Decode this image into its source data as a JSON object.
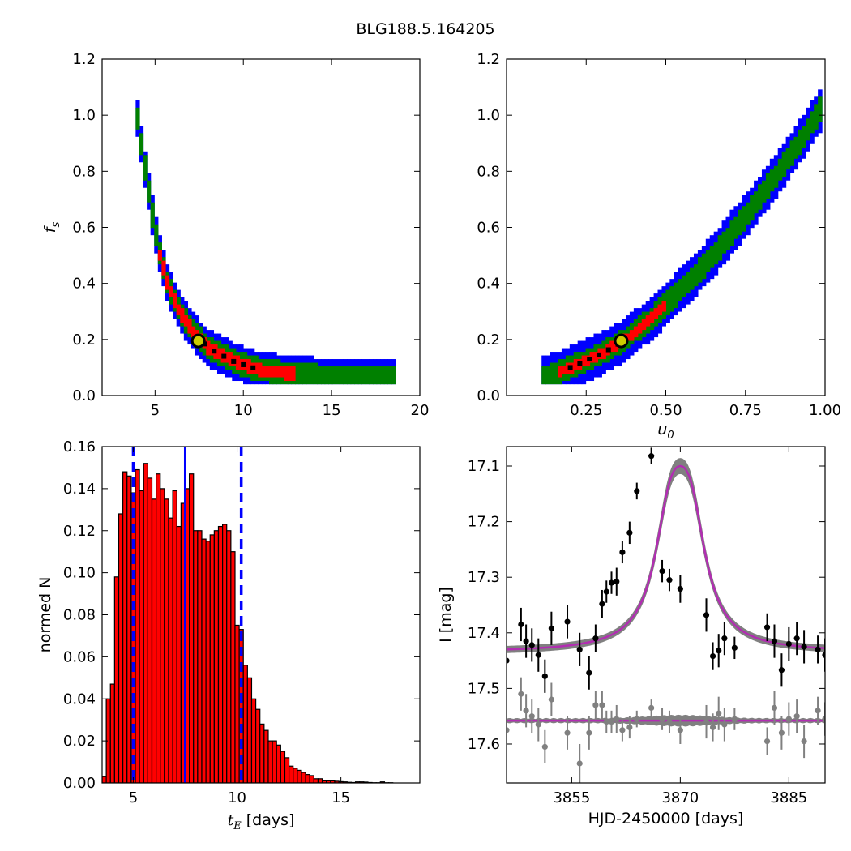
{
  "figure": {
    "title": "BLG188.5.164205"
  },
  "colors": {
    "outer": "#0000ff",
    "mid": "#008000",
    "inner": "#ff0000",
    "core": "#000000",
    "marker_ring": "#000000",
    "marker_fill": "#cccc00",
    "hist_fill": "#ff0000",
    "hist_edge": "#000000",
    "median_line": "#0000ff",
    "model_curve": "#b22db2",
    "data_points": "#000000",
    "residuals": "#808080",
    "model_band": "#808080"
  },
  "chart_data": [
    {
      "id": "fs_vs_tE",
      "type": "heatmap",
      "title": "",
      "xlabel": "",
      "ylabel": "f_s",
      "ylabel_main": "f",
      "ylabel_sub": "s",
      "xlim": [
        2,
        20
      ],
      "ylim": [
        0,
        1.2
      ],
      "xticks": [
        5,
        10,
        15,
        20
      ],
      "xtick_labels": [
        "5",
        "10",
        "15",
        "20"
      ],
      "yticks": [
        0.0,
        0.2,
        0.4,
        0.6,
        0.8,
        1.0,
        1.2
      ],
      "ytick_labels": [
        "0.0",
        "0.2",
        "0.4",
        "0.6",
        "0.8",
        "1.0",
        "1.2"
      ],
      "ridge_x": [
        3.9,
        4.1,
        4.4,
        4.8,
        5.2,
        5.7,
        6.3,
        7.0,
        8.0,
        9.5,
        11.0,
        13.0,
        15.0,
        17.5,
        18.6
      ],
      "ridge_y": [
        1.03,
        0.95,
        0.82,
        0.66,
        0.52,
        0.4,
        0.31,
        0.24,
        0.17,
        0.12,
        0.09,
        0.075,
        0.065,
        0.06,
        0.06
      ],
      "contour_half_width": {
        "outer": 0.06,
        "mid": 0.035,
        "inner": 0.015
      },
      "inner_range_x": [
        5.1,
        13.0
      ],
      "best_fit": {
        "x": 7.45,
        "y": 0.195
      }
    },
    {
      "id": "fs_vs_u0",
      "type": "heatmap",
      "title": "",
      "xlabel": "u_0",
      "xlabel_main": "u",
      "xlabel_sub": "0",
      "ylabel": "",
      "xlim": [
        0.0,
        1.0
      ],
      "ylim": [
        0,
        1.2
      ],
      "xticks": [
        0.25,
        0.5,
        0.75,
        1.0
      ],
      "xtick_labels": [
        "0.25",
        "0.50",
        "0.75",
        "1.00"
      ],
      "yticks": [
        0.0,
        0.2,
        0.4,
        0.6,
        0.8,
        1.0,
        1.2
      ],
      "ytick_labels": [
        "0.0",
        "0.2",
        "0.4",
        "0.6",
        "0.8",
        "1.0",
        "1.2"
      ],
      "ridge_x": [
        0.11,
        0.2,
        0.3,
        0.36,
        0.45,
        0.55,
        0.65,
        0.75,
        0.85,
        0.93,
        0.99
      ],
      "ridge_y": [
        0.06,
        0.1,
        0.15,
        0.19,
        0.27,
        0.38,
        0.5,
        0.64,
        0.79,
        0.92,
        1.03
      ],
      "contour_half_width": {
        "outer": 0.07,
        "mid": 0.035,
        "inner": 0.012
      },
      "inner_range_x": [
        0.16,
        0.5
      ],
      "best_fit": {
        "x": 0.36,
        "y": 0.195
      }
    },
    {
      "id": "tE_histogram",
      "type": "bar",
      "title": "",
      "xlabel": "t_E [days]",
      "xlabel_main": "t",
      "xlabel_sub": "E",
      "xlabel_unit": " [days]",
      "ylabel": "normed N",
      "xlim": [
        3.5,
        18.8
      ],
      "ylim": [
        0,
        0.16
      ],
      "xticks": [
        5,
        10,
        15
      ],
      "xtick_labels": [
        "5",
        "10",
        "15"
      ],
      "yticks": [
        0.0,
        0.02,
        0.04,
        0.06,
        0.08,
        0.1,
        0.12,
        0.14,
        0.16
      ],
      "ytick_labels": [
        "0.00",
        "0.02",
        "0.04",
        "0.06",
        "0.08",
        "0.10",
        "0.12",
        "0.14",
        "0.16"
      ],
      "bin_start": 3.5,
      "bin_width": 0.2,
      "values": [
        0.003,
        0.04,
        0.047,
        0.098,
        0.128,
        0.148,
        0.146,
        0.138,
        0.149,
        0.139,
        0.152,
        0.145,
        0.135,
        0.147,
        0.14,
        0.135,
        0.126,
        0.139,
        0.122,
        0.133,
        0.14,
        0.147,
        0.12,
        0.12,
        0.116,
        0.115,
        0.118,
        0.12,
        0.122,
        0.123,
        0.12,
        0.11,
        0.075,
        0.073,
        0.056,
        0.05,
        0.04,
        0.035,
        0.028,
        0.025,
        0.02,
        0.02,
        0.018,
        0.015,
        0.012,
        0.008,
        0.007,
        0.006,
        0.005,
        0.004,
        0.0035,
        0.002,
        0.002,
        0.001,
        0.001,
        0.001,
        0.0008,
        0.0006,
        0.0005,
        0.0003,
        0.0002,
        0.0005,
        0.0005,
        0.0004,
        0.0002,
        0.0001,
        0.0001,
        0.0005,
        0.0001,
        0.0001,
        0.0,
        0.0,
        0.0,
        0.0,
        0.0,
        0.0
      ],
      "median": 7.5,
      "lower_bound": 5.0,
      "upper_bound": 10.2
    },
    {
      "id": "lightcurve",
      "type": "scatter",
      "title": "",
      "xlabel": "HJD-2450000 [days]",
      "ylabel": "I [mag]",
      "xlim": [
        3846,
        3890
      ],
      "ylim": [
        17.67,
        17.065
      ],
      "y_inverted": true,
      "xticks": [
        3855,
        3870,
        3885
      ],
      "xtick_labels": [
        "3855",
        "3870",
        "3885"
      ],
      "yticks": [
        17.1,
        17.2,
        17.3,
        17.4,
        17.5,
        17.6
      ],
      "ytick_labels": [
        "17.1",
        "17.2",
        "17.3",
        "17.4",
        "17.5",
        "17.6"
      ],
      "model": {
        "t0": 3870.0,
        "base_mag": 17.435,
        "peak_mag": 17.1,
        "width": 2.6
      },
      "residual_baseline": 17.558,
      "series": [
        {
          "role": "photometry",
          "x": [
            3846.0,
            3848.0,
            3848.7,
            3849.5,
            3850.4,
            3851.3,
            3852.2,
            3854.4,
            3856.1,
            3857.4,
            3858.3,
            3859.2,
            3859.8,
            3860.5,
            3861.2,
            3862.0,
            3863.0,
            3864.0,
            3866.0,
            3867.5,
            3868.5,
            3870.0,
            3873.6,
            3874.5,
            3875.3,
            3876.1,
            3877.5,
            3882.0,
            3883.0,
            3884.0,
            3885.0,
            3886.1,
            3887.1,
            3889.0,
            3890.0
          ],
          "y": [
            17.45,
            17.385,
            17.415,
            17.422,
            17.44,
            17.478,
            17.392,
            17.38,
            17.43,
            17.472,
            17.41,
            17.348,
            17.326,
            17.31,
            17.308,
            17.255,
            17.22,
            17.145,
            17.082,
            17.289,
            17.305,
            17.321,
            17.368,
            17.442,
            17.432,
            17.41,
            17.427,
            17.39,
            17.415,
            17.467,
            17.42,
            17.41,
            17.425,
            17.43,
            17.44
          ],
          "err": [
            0.03,
            0.03,
            0.03,
            0.03,
            0.03,
            0.03,
            0.03,
            0.03,
            0.03,
            0.03,
            0.025,
            0.025,
            0.02,
            0.02,
            0.025,
            0.02,
            0.02,
            0.015,
            0.015,
            0.02,
            0.02,
            0.025,
            0.03,
            0.025,
            0.03,
            0.03,
            0.02,
            0.025,
            0.03,
            0.03,
            0.03,
            0.03,
            0.03,
            0.025,
            0.03
          ]
        },
        {
          "role": "residuals",
          "x": [
            3846.0,
            3848.0,
            3848.7,
            3849.5,
            3850.4,
            3851.3,
            3852.2,
            3854.4,
            3856.1,
            3857.4,
            3858.3,
            3859.2,
            3859.8,
            3860.5,
            3861.2,
            3862.0,
            3863.0,
            3864.0,
            3866.0,
            3867.5,
            3868.5,
            3870.0,
            3873.6,
            3874.5,
            3875.3,
            3876.1,
            3877.5,
            3882.0,
            3883.0,
            3884.0,
            3885.0,
            3886.1,
            3887.1,
            3889.0,
            3890.0
          ],
          "y": [
            17.575,
            17.51,
            17.54,
            17.55,
            17.565,
            17.605,
            17.52,
            17.58,
            17.635,
            17.58,
            17.53,
            17.53,
            17.56,
            17.56,
            17.555,
            17.575,
            17.57,
            17.555,
            17.535,
            17.555,
            17.56,
            17.575,
            17.56,
            17.57,
            17.545,
            17.565,
            17.555,
            17.595,
            17.535,
            17.58,
            17.555,
            17.55,
            17.595,
            17.54,
            17.555
          ],
          "err": [
            0.03,
            0.03,
            0.03,
            0.03,
            0.03,
            0.03,
            0.03,
            0.03,
            0.035,
            0.03,
            0.025,
            0.025,
            0.02,
            0.02,
            0.025,
            0.02,
            0.02,
            0.015,
            0.015,
            0.02,
            0.02,
            0.025,
            0.03,
            0.025,
            0.03,
            0.03,
            0.02,
            0.025,
            0.03,
            0.03,
            0.03,
            0.03,
            0.03,
            0.025,
            0.03
          ]
        }
      ]
    }
  ]
}
